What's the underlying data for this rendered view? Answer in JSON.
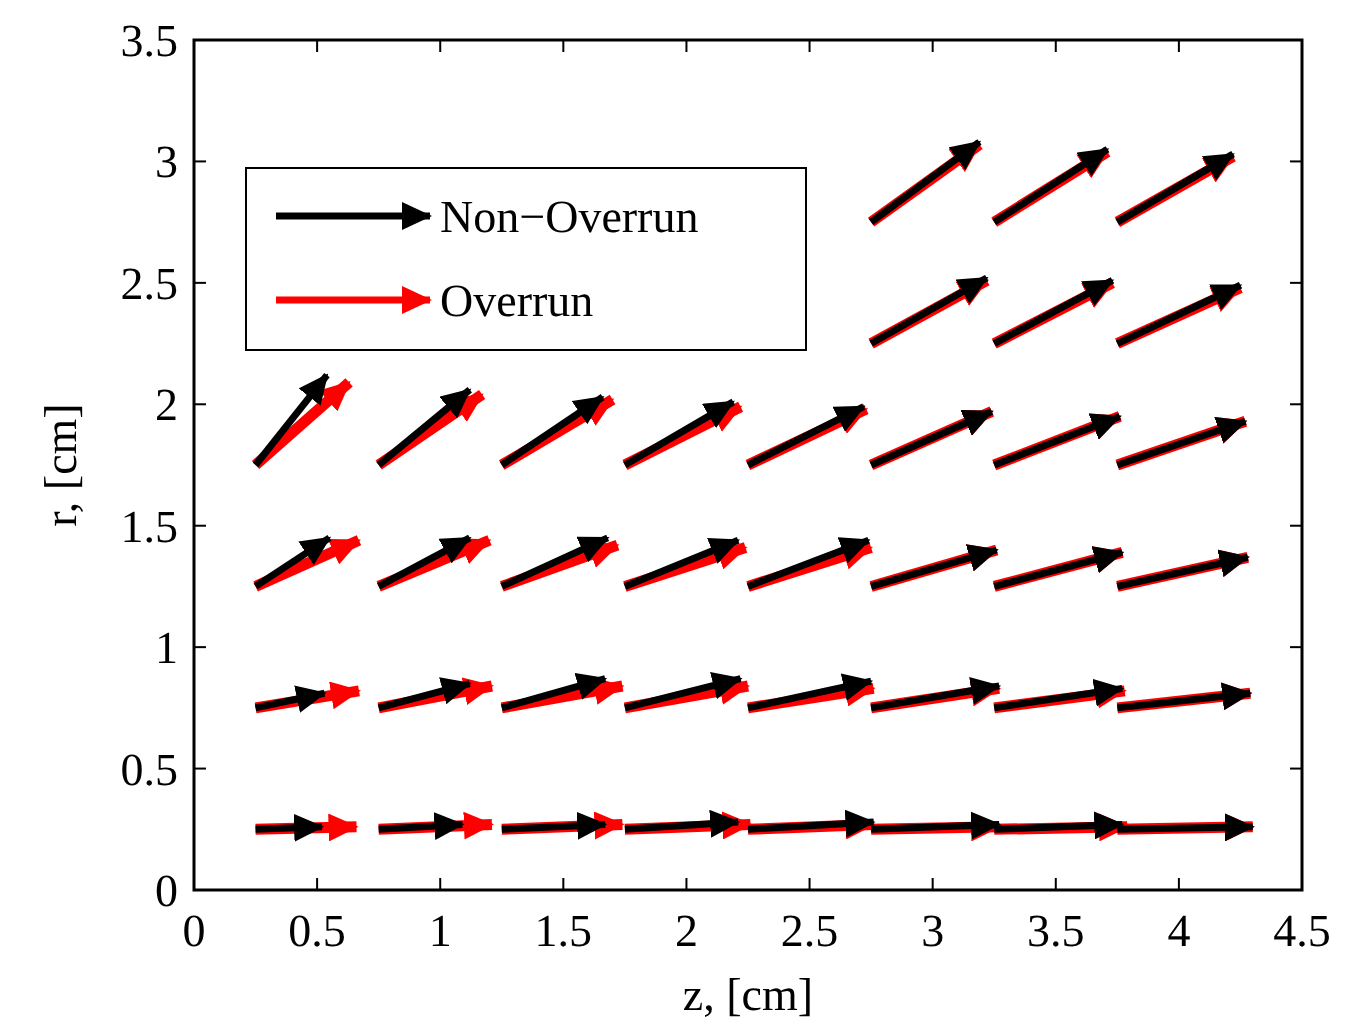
{
  "chart_data": {
    "type": "line",
    "xlabel": "z, [cm]",
    "ylabel": "r, [cm]",
    "xlim": [
      0,
      4.5
    ],
    "ylim": [
      0,
      3.5
    ],
    "xticks": [
      0,
      0.5,
      1,
      1.5,
      2,
      2.5,
      3,
      3.5,
      4,
      4.5
    ],
    "yticks": [
      0,
      0.5,
      1,
      1.5,
      2,
      2.5,
      3,
      3.5
    ],
    "grid": false,
    "legend": "top left",
    "line_style": "solid",
    "series": [
      {
        "name": "Non−Overrun",
        "color": "#000000",
        "x": [
          0.25,
          0.52
        ],
        "values": [
          0.25,
          0.26
        ]
      },
      {
        "color": "#000000",
        "x": [
          0.75,
          1.09
        ],
        "values": [
          0.25,
          0.27
        ]
      },
      {
        "color": "#000000",
        "x": [
          1.25,
          1.67
        ],
        "values": [
          0.25,
          0.27
        ]
      },
      {
        "color": "#000000",
        "x": [
          1.75,
          2.21
        ],
        "values": [
          0.25,
          0.28
        ]
      },
      {
        "color": "#000000",
        "x": [
          2.25,
          2.76
        ],
        "values": [
          0.25,
          0.28
        ]
      },
      {
        "color": "#000000",
        "x": [
          2.75,
          3.27
        ],
        "values": [
          0.25,
          0.27
        ]
      },
      {
        "color": "#000000",
        "x": [
          3.25,
          3.77
        ],
        "values": [
          0.25,
          0.27
        ]
      },
      {
        "color": "#000000",
        "x": [
          3.75,
          4.3
        ],
        "values": [
          0.25,
          0.26
        ]
      },
      {
        "color": "#000000",
        "x": [
          0.25,
          0.53
        ],
        "values": [
          0.75,
          0.81
        ]
      },
      {
        "color": "#000000",
        "x": [
          0.75,
          1.12
        ],
        "values": [
          0.75,
          0.85
        ]
      },
      {
        "color": "#000000",
        "x": [
          1.25,
          1.67
        ],
        "values": [
          0.75,
          0.87
        ]
      },
      {
        "color": "#000000",
        "x": [
          1.75,
          2.22
        ],
        "values": [
          0.75,
          0.87
        ]
      },
      {
        "color": "#000000",
        "x": [
          2.25,
          2.75
        ],
        "values": [
          0.75,
          0.86
        ]
      },
      {
        "color": "#000000",
        "x": [
          2.75,
          3.27
        ],
        "values": [
          0.75,
          0.84
        ]
      },
      {
        "color": "#000000",
        "x": [
          3.25,
          3.77
        ],
        "values": [
          0.75,
          0.83
        ]
      },
      {
        "color": "#000000",
        "x": [
          3.75,
          4.29
        ],
        "values": [
          0.75,
          0.81
        ]
      },
      {
        "color": "#000000",
        "x": [
          0.25,
          0.55
        ],
        "values": [
          1.25,
          1.45
        ]
      },
      {
        "color": "#000000",
        "x": [
          0.75,
          1.12
        ],
        "values": [
          1.25,
          1.45
        ]
      },
      {
        "color": "#000000",
        "x": [
          1.25,
          1.68
        ],
        "values": [
          1.25,
          1.45
        ]
      },
      {
        "color": "#000000",
        "x": [
          1.75,
          2.21
        ],
        "values": [
          1.25,
          1.44
        ]
      },
      {
        "color": "#000000",
        "x": [
          2.25,
          2.74
        ],
        "values": [
          1.25,
          1.44
        ]
      },
      {
        "color": "#000000",
        "x": [
          2.75,
          3.26
        ],
        "values": [
          1.25,
          1.4
        ]
      },
      {
        "color": "#000000",
        "x": [
          3.25,
          3.77
        ],
        "values": [
          1.25,
          1.39
        ]
      },
      {
        "color": "#000000",
        "x": [
          3.75,
          4.28
        ],
        "values": [
          1.25,
          1.37
        ]
      },
      {
        "color": "#000000",
        "x": [
          0.25,
          0.54
        ],
        "values": [
          1.75,
          2.12
        ]
      },
      {
        "color": "#000000",
        "x": [
          0.75,
          1.12
        ],
        "values": [
          1.75,
          2.06
        ]
      },
      {
        "color": "#000000",
        "x": [
          1.25,
          1.66
        ],
        "values": [
          1.75,
          2.03
        ]
      },
      {
        "color": "#000000",
        "x": [
          1.75,
          2.19
        ],
        "values": [
          1.75,
          2.01
        ]
      },
      {
        "color": "#000000",
        "x": [
          2.25,
          2.72
        ],
        "values": [
          1.75,
          1.99
        ]
      },
      {
        "color": "#000000",
        "x": [
          2.75,
          3.24
        ],
        "values": [
          1.75,
          1.97
        ]
      },
      {
        "color": "#000000",
        "x": [
          3.25,
          3.76
        ],
        "values": [
          1.75,
          1.95
        ]
      },
      {
        "color": "#000000",
        "x": [
          3.75,
          4.27
        ],
        "values": [
          1.75,
          1.93
        ]
      },
      {
        "color": "#000000",
        "x": [
          2.75,
          3.22
        ],
        "values": [
          2.25,
          2.52
        ]
      },
      {
        "color": "#000000",
        "x": [
          3.25,
          3.73
        ],
        "values": [
          2.25,
          2.51
        ]
      },
      {
        "color": "#000000",
        "x": [
          3.75,
          4.25
        ],
        "values": [
          2.25,
          2.49
        ]
      },
      {
        "color": "#000000",
        "x": [
          2.75,
          3.19
        ],
        "values": [
          2.75,
          3.08
        ]
      },
      {
        "color": "#000000",
        "x": [
          3.25,
          3.71
        ],
        "values": [
          2.75,
          3.05
        ]
      },
      {
        "color": "#000000",
        "x": [
          3.75,
          4.22
        ],
        "values": [
          2.75,
          3.03
        ]
      },
      {
        "name": "Overrun",
        "color": "#ff0000",
        "x": [
          0.25,
          0.66
        ],
        "values": [
          0.25,
          0.26
        ]
      },
      {
        "color": "#ff0000",
        "x": [
          0.75,
          1.21
        ],
        "values": [
          0.25,
          0.27
        ]
      },
      {
        "color": "#ff0000",
        "x": [
          1.25,
          1.74
        ],
        "values": [
          0.25,
          0.27
        ]
      },
      {
        "color": "#ff0000",
        "x": [
          1.75,
          2.26
        ],
        "values": [
          0.25,
          0.27
        ]
      },
      {
        "color": "#ff0000",
        "x": [
          2.25,
          2.76
        ],
        "values": [
          0.25,
          0.27
        ]
      },
      {
        "color": "#ff0000",
        "x": [
          2.75,
          3.27
        ],
        "values": [
          0.25,
          0.26
        ]
      },
      {
        "color": "#ff0000",
        "x": [
          3.25,
          3.79
        ],
        "values": [
          0.25,
          0.26
        ]
      },
      {
        "color": "#ff0000",
        "x": [
          3.75,
          4.3
        ],
        "values": [
          0.25,
          0.26
        ]
      },
      {
        "color": "#ff0000",
        "x": [
          0.25,
          0.67
        ],
        "values": [
          0.75,
          0.82
        ]
      },
      {
        "color": "#ff0000",
        "x": [
          0.75,
          1.21
        ],
        "values": [
          0.75,
          0.84
        ]
      },
      {
        "color": "#ff0000",
        "x": [
          1.25,
          1.74
        ],
        "values": [
          0.75,
          0.84
        ]
      },
      {
        "color": "#ff0000",
        "x": [
          1.75,
          2.25
        ],
        "values": [
          0.75,
          0.84
        ]
      },
      {
        "color": "#ff0000",
        "x": [
          2.25,
          2.76
        ],
        "values": [
          0.75,
          0.83
        ]
      },
      {
        "color": "#ff0000",
        "x": [
          2.75,
          3.27
        ],
        "values": [
          0.75,
          0.83
        ]
      },
      {
        "color": "#ff0000",
        "x": [
          3.25,
          3.78
        ],
        "values": [
          0.75,
          0.82
        ]
      },
      {
        "color": "#ff0000",
        "x": [
          3.75,
          4.29
        ],
        "values": [
          0.75,
          0.81
        ]
      },
      {
        "color": "#ff0000",
        "x": [
          0.25,
          0.67
        ],
        "values": [
          1.25,
          1.44
        ]
      },
      {
        "color": "#ff0000",
        "x": [
          0.75,
          1.2
        ],
        "values": [
          1.25,
          1.44
        ]
      },
      {
        "color": "#ff0000",
        "x": [
          1.25,
          1.72
        ],
        "values": [
          1.25,
          1.42
        ]
      },
      {
        "color": "#ff0000",
        "x": [
          1.75,
          2.24
        ],
        "values": [
          1.25,
          1.41
        ]
      },
      {
        "color": "#ff0000",
        "x": [
          2.25,
          2.75
        ],
        "values": [
          1.25,
          1.41
        ]
      },
      {
        "color": "#ff0000",
        "x": [
          2.75,
          3.26
        ],
        "values": [
          1.25,
          1.4
        ]
      },
      {
        "color": "#ff0000",
        "x": [
          3.25,
          3.77
        ],
        "values": [
          1.25,
          1.39
        ]
      },
      {
        "color": "#ff0000",
        "x": [
          3.75,
          4.28
        ],
        "values": [
          1.25,
          1.37
        ]
      },
      {
        "color": "#ff0000",
        "x": [
          0.25,
          0.63
        ],
        "values": [
          1.75,
          2.09
        ]
      },
      {
        "color": "#ff0000",
        "x": [
          0.75,
          1.17
        ],
        "values": [
          1.75,
          2.04
        ]
      },
      {
        "color": "#ff0000",
        "x": [
          1.25,
          1.7
        ],
        "values": [
          1.75,
          2.02
        ]
      },
      {
        "color": "#ff0000",
        "x": [
          1.75,
          2.22
        ],
        "values": [
          1.75,
          1.99
        ]
      },
      {
        "color": "#ff0000",
        "x": [
          2.25,
          2.73
        ],
        "values": [
          1.75,
          1.98
        ]
      },
      {
        "color": "#ff0000",
        "x": [
          2.75,
          3.24
        ],
        "values": [
          1.75,
          1.97
        ]
      },
      {
        "color": "#ff0000",
        "x": [
          3.25,
          3.76
        ],
        "values": [
          1.75,
          1.95
        ]
      },
      {
        "color": "#ff0000",
        "x": [
          3.75,
          4.27
        ],
        "values": [
          1.75,
          1.93
        ]
      },
      {
        "color": "#ff0000",
        "x": [
          2.75,
          3.22
        ],
        "values": [
          2.25,
          2.51
        ]
      },
      {
        "color": "#ff0000",
        "x": [
          3.25,
          3.73
        ],
        "values": [
          2.25,
          2.5
        ]
      },
      {
        "color": "#ff0000",
        "x": [
          3.75,
          4.25
        ],
        "values": [
          2.25,
          2.48
        ]
      },
      {
        "color": "#ff0000",
        "x": [
          2.75,
          3.19
        ],
        "values": [
          2.75,
          3.07
        ]
      },
      {
        "color": "#ff0000",
        "x": [
          3.25,
          3.71
        ],
        "values": [
          2.75,
          3.04
        ]
      },
      {
        "color": "#ff0000",
        "x": [
          3.75,
          4.22
        ],
        "values": [
          2.75,
          3.02
        ]
      }
    ]
  }
}
